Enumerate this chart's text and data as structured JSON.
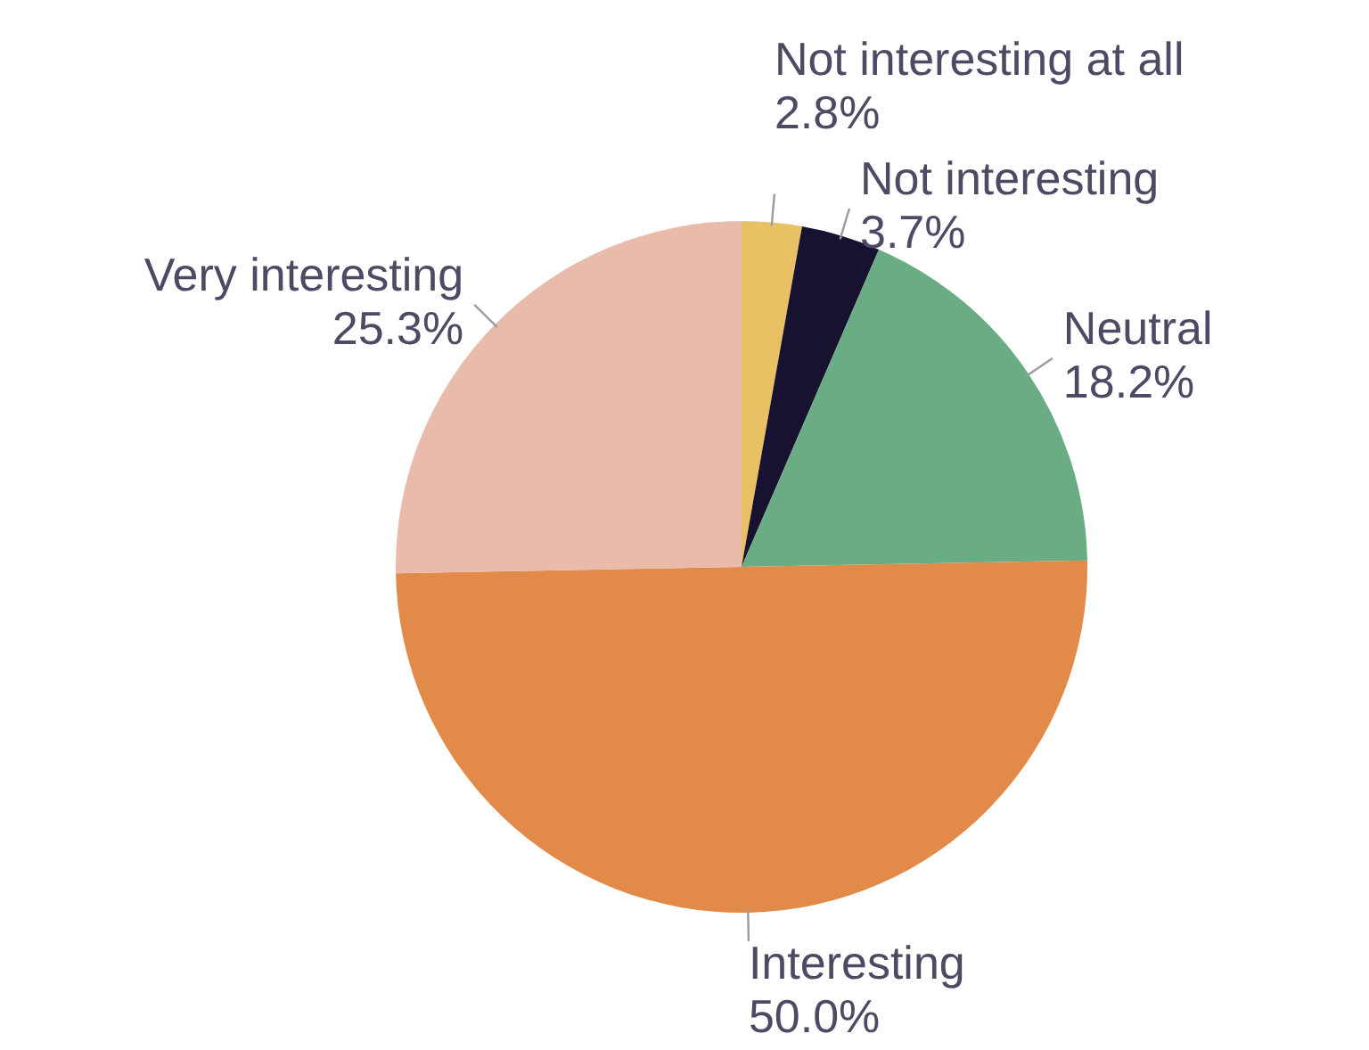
{
  "chart_data": {
    "type": "pie",
    "categories": [
      "Not interesting at all",
      "Not interesting",
      "Neutral",
      "Interesting",
      "Very interesting"
    ],
    "values": [
      2.8,
      3.7,
      18.2,
      50.0,
      25.3
    ],
    "value_labels": [
      "2.8%",
      "3.7%",
      "18.2%",
      "50.0%",
      "25.3%"
    ],
    "colors": [
      "#e9c064",
      "#17122f",
      "#6aad84",
      "#e18a4a",
      "#e8bbab"
    ],
    "legend": false
  }
}
